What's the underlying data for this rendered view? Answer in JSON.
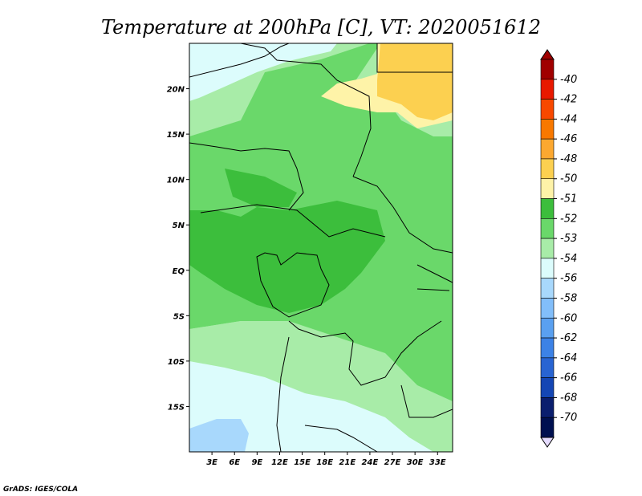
{
  "chart_data": {
    "type": "heatmap",
    "title": "Temperature at 200hPa [C], VT: 2020051612",
    "x_tick_labels": [
      "3E",
      "6E",
      "9E",
      "12E",
      "15E",
      "18E",
      "21E",
      "24E",
      "27E",
      "30E",
      "33E"
    ],
    "x_tick_values": [
      3,
      6,
      9,
      12,
      15,
      18,
      21,
      24,
      27,
      30,
      33
    ],
    "y_tick_labels": [
      "20N",
      "15N",
      "10N",
      "5N",
      "EQ",
      "5S",
      "10S",
      "15S"
    ],
    "y_tick_values": [
      20,
      15,
      10,
      5,
      0,
      -5,
      -10,
      -15
    ],
    "xlim": [
      0,
      35
    ],
    "ylim": [
      -20,
      25
    ],
    "colorbar": {
      "labels": [
        "-40",
        "-42",
        "-44",
        "-46",
        "-48",
        "-50",
        "-51",
        "-52",
        "-53",
        "-54",
        "-56",
        "-58",
        "-60",
        "-62",
        "-64",
        "-66",
        "-68",
        "-70"
      ],
      "colors": [
        "#a00000",
        "#e81800",
        "#f84800",
        "#f87800",
        "#fca830",
        "#fcd050",
        "#fef3a8",
        "#3cbe3c",
        "#6ad86a",
        "#a8eca8",
        "#dcfcfc",
        "#a8d8fc",
        "#82befa",
        "#5aa0f0",
        "#3c82e6",
        "#2864d2",
        "#1446b4",
        "#0a1e6e",
        "#001050"
      ],
      "arrow_top_color": "#a00000",
      "arrow_bottom_color": "#e6dcff"
    },
    "field_colors": {
      "level_52": "#3cbe3c",
      "level_53": "#6ad86a",
      "level_54": "#a8eca8",
      "level_56": "#dcfcfc",
      "level_58": "#a8d8fc",
      "level_50": "#fef3a8",
      "level_48": "#fcd050"
    },
    "credit": "GrADS: IGES/COLA"
  }
}
